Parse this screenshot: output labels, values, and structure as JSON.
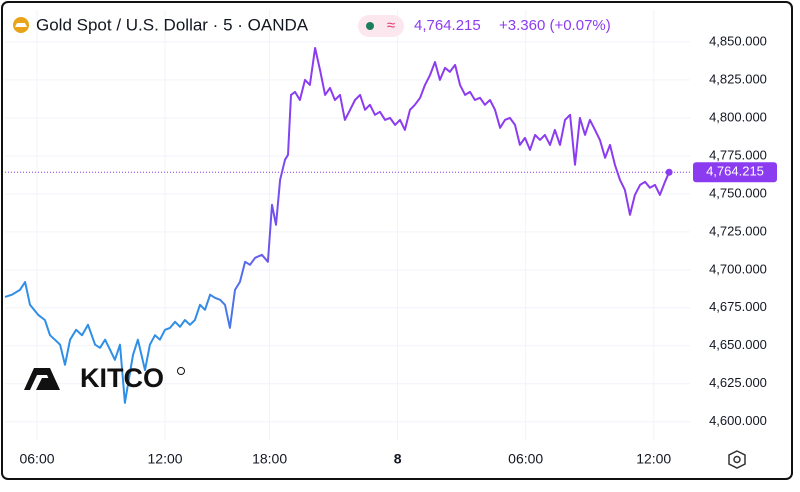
{
  "chart_data": {
    "type": "line",
    "title": "Gold Spot / U.S. Dollar · 5 · OANDA",
    "badge": "≈",
    "last_price": "4,764.215",
    "change": "+3.360 (+0.07%)",
    "price_label": "4,764.215",
    "watermark": "KITCO",
    "colors": [
      "#2f8ee6",
      "#8c3cf0"
    ],
    "grid": true,
    "xlim": [
      0,
      32.1
    ],
    "xticks": [
      {
        "value": 1.5,
        "label": "06:00"
      },
      {
        "value": 7.5,
        "label": "12:00"
      },
      {
        "value": 12.4,
        "label": "18:00"
      },
      {
        "value": 18.4,
        "label": "8"
      },
      {
        "value": 24.4,
        "label": "06:00"
      },
      {
        "value": 30.4,
        "label": "12:00"
      }
    ],
    "ylim": [
      4588,
      4871
    ],
    "yticks": [
      {
        "value": 4600,
        "label": "4,600.000"
      },
      {
        "value": 4625,
        "label": "4,625.000"
      },
      {
        "value": 4650,
        "label": "4,650.000"
      },
      {
        "value": 4675,
        "label": "4,675.000"
      },
      {
        "value": 4700,
        "label": "4,700.000"
      },
      {
        "value": 4725,
        "label": "4,725.000"
      },
      {
        "value": 4750,
        "label": "4,750.000"
      },
      {
        "value": 4775,
        "label": "4,775.000"
      },
      {
        "value": 4800,
        "label": "4,800.000"
      },
      {
        "value": 4825,
        "label": "4,825.000"
      },
      {
        "value": 4850,
        "label": "4,850.000"
      }
    ],
    "x": [
      0,
      0.33,
      0.7,
      0.94,
      1.17,
      1.55,
      1.87,
      2.11,
      2.34,
      2.58,
      2.81,
      3.05,
      3.33,
      3.61,
      3.89,
      4.22,
      4.45,
      4.69,
      4.92,
      5.15,
      5.39,
      5.62,
      5.76,
      6.0,
      6.23,
      6.56,
      6.79,
      7.03,
      7.26,
      7.5,
      7.73,
      7.97,
      8.2,
      8.43,
      8.67,
      8.9,
      9.14,
      9.37,
      9.61,
      9.84,
      10.08,
      10.31,
      10.54,
      10.78,
      11.01,
      11.25,
      11.48,
      11.72,
      12.04,
      12.32,
      12.51,
      12.7,
      12.89,
      13.12,
      13.26,
      13.4,
      13.59,
      13.82,
      14.06,
      14.29,
      14.53,
      14.76,
      15.0,
      15.23,
      15.46,
      15.7,
      15.93,
      16.17,
      16.4,
      16.64,
      16.87,
      17.1,
      17.34,
      17.57,
      17.81,
      18.04,
      18.28,
      18.51,
      18.74,
      18.98,
      19.21,
      19.45,
      19.68,
      19.92,
      20.15,
      20.38,
      20.62,
      20.85,
      21.09,
      21.32,
      21.56,
      21.79,
      22.02,
      22.26,
      22.49,
      22.73,
      22.96,
      23.2,
      23.43,
      23.66,
      23.9,
      24.13,
      24.37,
      24.6,
      24.84,
      25.07,
      25.3,
      25.54,
      25.77,
      26.01,
      26.24,
      26.48,
      26.71,
      26.94,
      27.18,
      27.41,
      27.65,
      27.88,
      28.12,
      28.35,
      28.58,
      28.82,
      29.05,
      29.29,
      29.52,
      29.76,
      29.99,
      30.22,
      30.46,
      30.69,
      30.93,
      31.12
    ],
    "values": [
      4682.2,
      4683.6,
      4686.8,
      4692,
      4677,
      4670.4,
      4667,
      4657,
      4654,
      4650.7,
      4637.5,
      4654,
      4660.5,
      4657,
      4663.8,
      4650.7,
      4648.7,
      4654,
      4647.4,
      4640.8,
      4650.7,
      4612.5,
      4624.3,
      4644,
      4654,
      4634,
      4650.7,
      4657,
      4654,
      4660.5,
      4661.8,
      4665.8,
      4662.5,
      4667,
      4663.8,
      4667,
      4677,
      4673.7,
      4683.6,
      4681.6,
      4680.3,
      4677,
      4661.8,
      4686.8,
      4692,
      4705.3,
      4703.3,
      4707.9,
      4709.9,
      4705.3,
      4742.8,
      4729.6,
      4759.2,
      4772.4,
      4775.7,
      4815.1,
      4817.1,
      4811.8,
      4825,
      4821.7,
      4846,
      4831.6,
      4815.1,
      4819.7,
      4811.8,
      4815.1,
      4798.7,
      4805.3,
      4811.8,
      4815.1,
      4805.3,
      4808.6,
      4802,
      4804,
      4798.7,
      4800,
      4795.4,
      4798.7,
      4792.1,
      4805.3,
      4808.6,
      4813.2,
      4821.7,
      4828.3,
      4836.8,
      4825,
      4832.9,
      4830.3,
      4834.9,
      4821.7,
      4815.1,
      4817.1,
      4811.8,
      4813.2,
      4808.6,
      4811.8,
      4805.3,
      4793.4,
      4798.7,
      4800,
      4795.4,
      4782.2,
      4786.8,
      4778.9,
      4788.8,
      4785.5,
      4788.8,
      4782.2,
      4792.1,
      4782.2,
      4798.7,
      4802,
      4769.1,
      4800,
      4788.8,
      4798.7,
      4792.1,
      4785.5,
      4773.7,
      4782.2,
      4769.1,
      4759.2,
      4752.6,
      4736.2,
      4749.3,
      4755.9,
      4757.9,
      4754,
      4755.9,
      4749.3,
      4757.9,
      4764.215
    ]
  }
}
